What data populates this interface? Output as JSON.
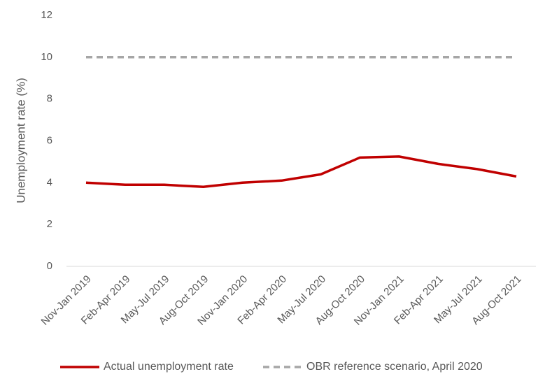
{
  "chart_data": {
    "type": "line",
    "title": "",
    "xlabel": "",
    "ylabel": "Unemployment rate (%)",
    "ylim": [
      0,
      12
    ],
    "yticks": [
      0,
      2,
      4,
      6,
      8,
      10,
      12
    ],
    "grid": false,
    "legend_position": "bottom",
    "categories": [
      "Nov-Jan 2019",
      "Feb-Apr 2019",
      "May-Jul 2019",
      "Aug-Oct 2019",
      "Nov-Jan 2020",
      "Feb-Apr 2020",
      "May-Jul 2020",
      "Aug-Oct 2020",
      "Nov-Jan 2021",
      "Feb-Apr 2021",
      "May-Jul 2021",
      "Aug-Oct 2021"
    ],
    "series": [
      {
        "name": "Actual unemployment rate",
        "color": "#C00000",
        "style": "solid",
        "values": [
          4.0,
          3.9,
          3.9,
          3.8,
          4.0,
          4.1,
          4.4,
          5.2,
          5.25,
          4.9,
          4.65,
          4.3
        ]
      },
      {
        "name": "OBR reference scenario, April 2020",
        "color": "#A6A6A6",
        "style": "dashed",
        "values": [
          10,
          10,
          10,
          10,
          10,
          10,
          10,
          10,
          10,
          10,
          10,
          10
        ]
      }
    ]
  }
}
